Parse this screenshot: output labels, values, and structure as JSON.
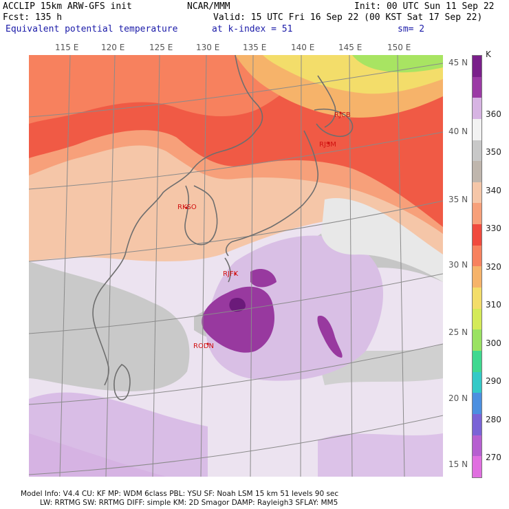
{
  "header": {
    "model": "ACCLIP 15km ARW-GFS init",
    "org": "NCAR/MMM",
    "init": "Init: 00 UTC Sun 11 Sep 22",
    "fcst": "Fcst:  135 h",
    "valid": "Valid: 15 UTC Fri 16 Sep 22 (00 KST Sat 17 Sep 22)",
    "field": "Equivalent potential temperature",
    "level": "at k-index =  51",
    "smooth": "sm= 2"
  },
  "longitudes": [
    "115 E",
    "120 E",
    "125 E",
    "130 E",
    "135 E",
    "140 E",
    "145 E",
    "150 E"
  ],
  "latitudes": [
    "45 N",
    "40 N",
    "35 N",
    "30 N",
    "25 N",
    "20 N",
    "15 N"
  ],
  "stations": [
    "RJCB",
    "RJSM",
    "RKSO",
    "RJFK",
    "RODN"
  ],
  "colorbar": {
    "unit": "K",
    "labels": [
      "360",
      "350",
      "340",
      "330",
      "320",
      "310",
      "300",
      "290",
      "280",
      "270"
    ],
    "colors": [
      "#7a1f8a",
      "#9b3aa5",
      "#d7b4e3",
      "#f2f2f2",
      "#c8c8c8",
      "#bfb6ad",
      "#f5c6a8",
      "#f7a07a",
      "#f04a3e",
      "#f7815e",
      "#f6b36a",
      "#f3dd6a",
      "#d4ea58",
      "#9ae262",
      "#3fd890",
      "#34c9c7",
      "#4c8fe0",
      "#7a63d6",
      "#b65fd0",
      "#e06fe0"
    ]
  },
  "footer": {
    "line1": "Model Info: V4.4     CU: KF      MP: WDM 6class  PBL: YSU       SF: Noah LSM     15 km    51 levels   90 sec",
    "line2": "LW: RRTMG    SW: RRTMG   DIFF: simple KM: 2D Smagor DAMP: Rayleigh3  SFLAY: MM5"
  }
}
